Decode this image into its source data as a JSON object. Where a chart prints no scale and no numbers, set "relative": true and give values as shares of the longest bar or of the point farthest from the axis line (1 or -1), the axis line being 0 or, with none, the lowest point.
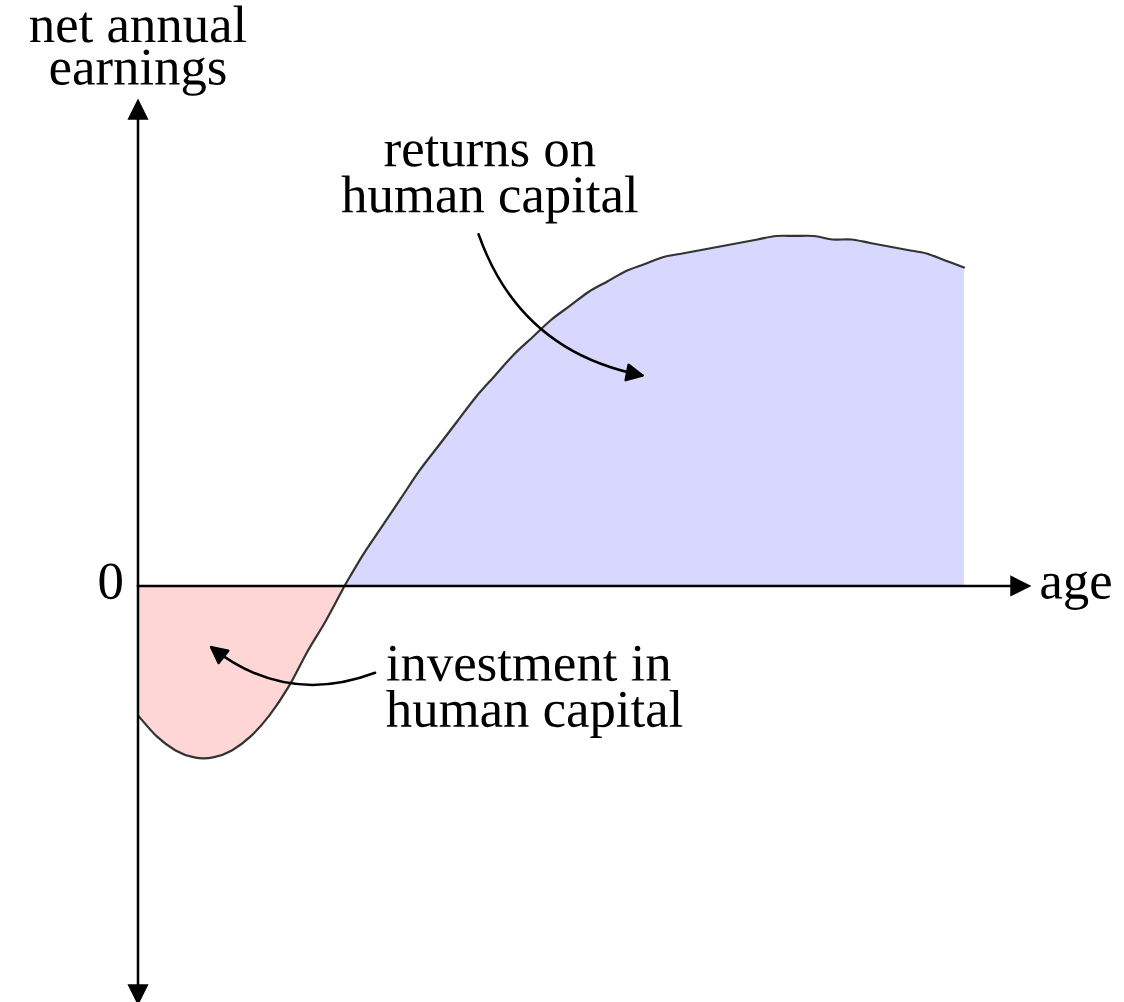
{
  "chart_data": {
    "type": "area",
    "relative": true,
    "xlabel": "age",
    "ylabel": "net annual\nearnings",
    "categories": [
      null,
      null,
      null,
      null,
      null,
      null,
      null,
      null,
      null,
      null,
      null,
      null,
      null,
      null,
      null,
      null,
      null,
      null,
      null,
      null,
      null,
      null,
      null,
      null,
      null,
      null,
      null,
      null,
      null,
      null,
      null,
      null,
      null,
      null,
      null,
      null,
      null,
      null,
      null,
      null,
      null,
      null,
      null,
      null,
      null
    ],
    "series": [
      {
        "name": "investment in\nhuman capital",
        "color": "#ffd6d6",
        "values": [
          -0.37,
          -0.43,
          -0.47,
          -0.49,
          -0.49,
          -0.47,
          -0.43,
          -0.37,
          -0.29,
          -0.19,
          -0.1,
          0,
          null,
          null,
          null,
          null,
          null,
          null,
          null,
          null,
          null,
          null,
          null,
          null,
          null,
          null,
          null,
          null,
          null,
          null,
          null,
          null,
          null,
          null,
          null,
          null,
          null,
          null,
          null,
          null,
          null,
          null,
          null,
          null,
          null
        ]
      },
      {
        "name": "returns on\nhuman capital",
        "color": "#d8d8ff",
        "values": [
          null,
          null,
          null,
          null,
          null,
          null,
          null,
          null,
          null,
          null,
          null,
          0,
          0.09,
          0.17,
          0.25,
          0.33,
          0.4,
          0.47,
          0.54,
          0.6,
          0.66,
          0.71,
          0.76,
          0.8,
          0.84,
          0.87,
          0.9,
          0.92,
          0.94,
          0.95,
          0.96,
          0.97,
          0.98,
          0.99,
          1.0,
          1.0,
          1.0,
          0.99,
          0.99,
          0.98,
          0.97,
          0.96,
          0.95,
          0.93,
          0.91
        ]
      }
    ],
    "annotations": [
      "0"
    ]
  }
}
